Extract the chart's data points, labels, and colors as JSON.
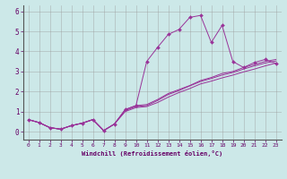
{
  "xlabel": "Windchill (Refroidissement éolien,°C)",
  "bg_color": "#cce8e8",
  "grid_color": "#999999",
  "line_color": "#993399",
  "xlim": [
    -0.5,
    23.5
  ],
  "ylim": [
    -0.4,
    6.3
  ],
  "xticks": [
    0,
    1,
    2,
    3,
    4,
    5,
    6,
    7,
    8,
    9,
    10,
    11,
    12,
    13,
    14,
    15,
    16,
    17,
    18,
    19,
    20,
    21,
    22,
    23
  ],
  "yticks": [
    0,
    1,
    2,
    3,
    4,
    5,
    6
  ],
  "line1_x": [
    0,
    1,
    2,
    3,
    4,
    5,
    6,
    7,
    8,
    9,
    10,
    11,
    12,
    13,
    14,
    15,
    16,
    17,
    18,
    19,
    20,
    21,
    22,
    23
  ],
  "line1_y": [
    0.6,
    0.45,
    0.2,
    0.12,
    0.3,
    0.42,
    0.6,
    0.05,
    0.38,
    1.1,
    1.3,
    3.5,
    4.2,
    4.85,
    5.1,
    5.7,
    5.8,
    4.45,
    5.3,
    3.5,
    3.2,
    3.45,
    3.6,
    3.4
  ],
  "line2_x": [
    0,
    1,
    2,
    3,
    4,
    5,
    6,
    7,
    8,
    9,
    10,
    11,
    12,
    13,
    14,
    15,
    16,
    17,
    18,
    19,
    20,
    21,
    22,
    23
  ],
  "line2_y": [
    0.6,
    0.45,
    0.2,
    0.12,
    0.3,
    0.42,
    0.6,
    0.05,
    0.38,
    1.1,
    1.3,
    1.35,
    1.6,
    1.9,
    2.1,
    2.3,
    2.55,
    2.7,
    2.9,
    3.0,
    3.2,
    3.35,
    3.5,
    3.6
  ],
  "line3_x": [
    0,
    1,
    2,
    3,
    4,
    5,
    6,
    7,
    8,
    9,
    10,
    11,
    12,
    13,
    14,
    15,
    16,
    17,
    18,
    19,
    20,
    21,
    22,
    23
  ],
  "line3_y": [
    0.6,
    0.45,
    0.2,
    0.12,
    0.3,
    0.42,
    0.6,
    0.05,
    0.38,
    1.05,
    1.25,
    1.3,
    1.55,
    1.85,
    2.05,
    2.28,
    2.5,
    2.65,
    2.82,
    2.95,
    3.12,
    3.28,
    3.42,
    3.52
  ],
  "line4_x": [
    0,
    1,
    2,
    3,
    4,
    5,
    6,
    7,
    8,
    9,
    10,
    11,
    12,
    13,
    14,
    15,
    16,
    17,
    18,
    19,
    20,
    21,
    22,
    23
  ],
  "line4_y": [
    0.6,
    0.45,
    0.2,
    0.12,
    0.3,
    0.42,
    0.6,
    0.05,
    0.38,
    1.0,
    1.2,
    1.25,
    1.45,
    1.72,
    1.95,
    2.15,
    2.38,
    2.52,
    2.68,
    2.82,
    2.98,
    3.12,
    3.28,
    3.42
  ]
}
